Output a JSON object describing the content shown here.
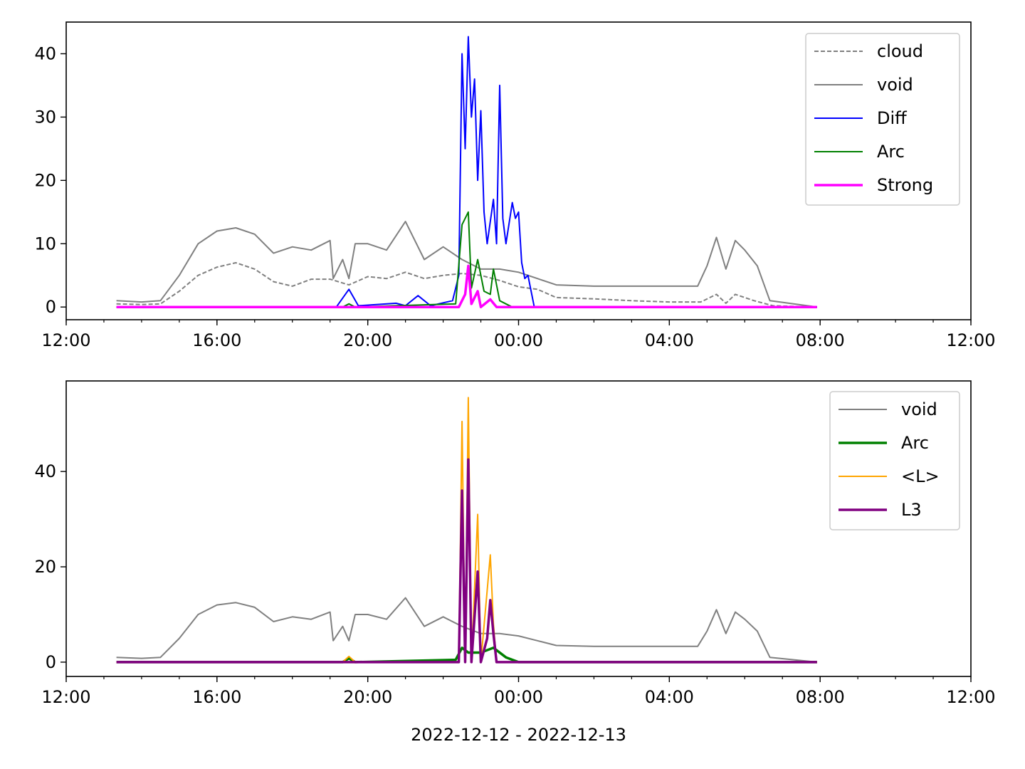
{
  "chart_data": [
    {
      "type": "line",
      "title": "",
      "xlabel": "",
      "ylabel": "",
      "xlim": [
        "2022-12-12 12:00",
        "2022-12-13 12:00"
      ],
      "ylim": [
        -2,
        45
      ],
      "x_ticks": [
        "12:00",
        "16:00",
        "20:00",
        "00:00",
        "04:00",
        "08:00",
        "12:00"
      ],
      "y_ticks": [
        "0",
        "10",
        "20",
        "30",
        "40"
      ],
      "legend_position": "top-right",
      "series": [
        {
          "name": "cloud",
          "color": "#808080",
          "style": "dashed",
          "points": [
            [
              "2022-12-12 13:20",
              0.5
            ],
            [
              "2022-12-12 14:00",
              0.4
            ],
            [
              "2022-12-12 14:30",
              0.5
            ],
            [
              "2022-12-12 15:00",
              2.5
            ],
            [
              "2022-12-12 15:30",
              5.0
            ],
            [
              "2022-12-12 16:00",
              6.3
            ],
            [
              "2022-12-12 16:30",
              7.0
            ],
            [
              "2022-12-12 17:00",
              6.0
            ],
            [
              "2022-12-12 17:30",
              4.0
            ],
            [
              "2022-12-12 18:00",
              3.3
            ],
            [
              "2022-12-12 18:30",
              4.4
            ],
            [
              "2022-12-12 19:00",
              4.4
            ],
            [
              "2022-12-12 19:30",
              3.5
            ],
            [
              "2022-12-12 20:00",
              4.8
            ],
            [
              "2022-12-12 20:30",
              4.5
            ],
            [
              "2022-12-12 21:00",
              5.5
            ],
            [
              "2022-12-12 21:30",
              4.5
            ],
            [
              "2022-12-12 22:00",
              5.0
            ],
            [
              "2022-12-12 22:30",
              5.3
            ],
            [
              "2022-12-12 23:00",
              5.0
            ],
            [
              "2022-12-12 23:30",
              4.2
            ],
            [
              "2022-12-13 00:00",
              3.2
            ],
            [
              "2022-12-13 00:30",
              2.8
            ],
            [
              "2022-12-13 01:00",
              1.5
            ],
            [
              "2022-12-13 02:00",
              1.3
            ],
            [
              "2022-12-13 03:00",
              1.0
            ],
            [
              "2022-12-13 04:00",
              0.8
            ],
            [
              "2022-12-13 04:50",
              0.8
            ],
            [
              "2022-12-13 05:15",
              2.0
            ],
            [
              "2022-12-13 05:30",
              0.6
            ],
            [
              "2022-12-13 05:45",
              2.0
            ],
            [
              "2022-12-13 06:15",
              1.0
            ],
            [
              "2022-12-13 06:45",
              0.2
            ],
            [
              "2022-12-13 07:55",
              0.0
            ]
          ]
        },
        {
          "name": "void",
          "color": "#808080",
          "style": "solid",
          "points": [
            [
              "2022-12-12 13:20",
              1.0
            ],
            [
              "2022-12-12 14:00",
              0.8
            ],
            [
              "2022-12-12 14:30",
              1.0
            ],
            [
              "2022-12-12 15:00",
              5.0
            ],
            [
              "2022-12-12 15:30",
              10.0
            ],
            [
              "2022-12-12 16:00",
              12.0
            ],
            [
              "2022-12-12 16:30",
              12.5
            ],
            [
              "2022-12-12 17:00",
              11.5
            ],
            [
              "2022-12-12 17:30",
              8.5
            ],
            [
              "2022-12-12 18:00",
              9.5
            ],
            [
              "2022-12-12 18:30",
              9.0
            ],
            [
              "2022-12-12 19:00",
              10.5
            ],
            [
              "2022-12-12 19:05",
              4.5
            ],
            [
              "2022-12-12 19:20",
              7.5
            ],
            [
              "2022-12-12 19:30",
              4.5
            ],
            [
              "2022-12-12 19:40",
              10.0
            ],
            [
              "2022-12-12 20:00",
              10.0
            ],
            [
              "2022-12-12 20:30",
              9.0
            ],
            [
              "2022-12-12 21:00",
              13.5
            ],
            [
              "2022-12-12 21:30",
              7.5
            ],
            [
              "2022-12-12 22:00",
              9.5
            ],
            [
              "2022-12-12 22:30",
              7.5
            ],
            [
              "2022-12-12 23:00",
              6.0
            ],
            [
              "2022-12-12 23:30",
              6.0
            ],
            [
              "2022-12-13 00:00",
              5.5
            ],
            [
              "2022-12-13 00:30",
              4.5
            ],
            [
              "2022-12-13 01:00",
              3.5
            ],
            [
              "2022-12-13 02:00",
              3.3
            ],
            [
              "2022-12-13 03:00",
              3.3
            ],
            [
              "2022-12-13 04:00",
              3.3
            ],
            [
              "2022-12-13 04:45",
              3.3
            ],
            [
              "2022-12-13 05:00",
              6.5
            ],
            [
              "2022-12-13 05:15",
              11.0
            ],
            [
              "2022-12-13 05:30",
              6.0
            ],
            [
              "2022-12-13 05:45",
              10.5
            ],
            [
              "2022-12-13 06:00",
              9.0
            ],
            [
              "2022-12-13 06:20",
              6.5
            ],
            [
              "2022-12-13 06:40",
              1.0
            ],
            [
              "2022-12-13 07:55",
              0.0
            ]
          ]
        },
        {
          "name": "Diff",
          "color": "#0000ff",
          "style": "solid",
          "points": [
            [
              "2022-12-12 13:20",
              0.0
            ],
            [
              "2022-12-12 19:10",
              0.0
            ],
            [
              "2022-12-12 19:30",
              2.8
            ],
            [
              "2022-12-12 19:45",
              0.2
            ],
            [
              "2022-12-12 20:45",
              0.6
            ],
            [
              "2022-12-12 21:00",
              0.2
            ],
            [
              "2022-12-12 21:20",
              1.8
            ],
            [
              "2022-12-12 21:40",
              0.2
            ],
            [
              "2022-12-12 22:15",
              1.0
            ],
            [
              "2022-12-12 22:25",
              5.0
            ],
            [
              "2022-12-12 22:30",
              40.0
            ],
            [
              "2022-12-12 22:35",
              25.0
            ],
            [
              "2022-12-12 22:40",
              42.7
            ],
            [
              "2022-12-12 22:45",
              30.0
            ],
            [
              "2022-12-12 22:50",
              36.0
            ],
            [
              "2022-12-12 22:55",
              20.0
            ],
            [
              "2022-12-12 23:00",
              31.0
            ],
            [
              "2022-12-12 23:05",
              15.0
            ],
            [
              "2022-12-12 23:10",
              10.0
            ],
            [
              "2022-12-12 23:20",
              17.0
            ],
            [
              "2022-12-12 23:25",
              10.0
            ],
            [
              "2022-12-12 23:30",
              35.0
            ],
            [
              "2022-12-12 23:35",
              14.0
            ],
            [
              "2022-12-12 23:40",
              10.0
            ],
            [
              "2022-12-12 23:50",
              16.5
            ],
            [
              "2022-12-12 23:55",
              14.0
            ],
            [
              "2022-12-13 00:00",
              15.0
            ],
            [
              "2022-12-13 00:05",
              7.0
            ],
            [
              "2022-12-13 00:10",
              4.5
            ],
            [
              "2022-12-13 00:15",
              5.0
            ],
            [
              "2022-12-13 00:25",
              0.0
            ],
            [
              "2022-12-13 07:55",
              0.0
            ]
          ]
        },
        {
          "name": "Arc",
          "color": "#008000",
          "style": "solid",
          "points": [
            [
              "2022-12-12 13:20",
              0.0
            ],
            [
              "2022-12-12 19:20",
              0.0
            ],
            [
              "2022-12-12 19:30",
              0.5
            ],
            [
              "2022-12-12 19:40",
              0.0
            ],
            [
              "2022-12-12 22:20",
              0.5
            ],
            [
              "2022-12-12 22:30",
              13.0
            ],
            [
              "2022-12-12 22:40",
              15.0
            ],
            [
              "2022-12-12 22:45",
              3.0
            ],
            [
              "2022-12-12 22:55",
              7.5
            ],
            [
              "2022-12-12 23:05",
              2.5
            ],
            [
              "2022-12-12 23:15",
              2.0
            ],
            [
              "2022-12-12 23:20",
              6.0
            ],
            [
              "2022-12-12 23:30",
              1.0
            ],
            [
              "2022-12-12 23:40",
              0.5
            ],
            [
              "2022-12-12 23:50",
              0.0
            ],
            [
              "2022-12-13 07:55",
              0.0
            ]
          ]
        },
        {
          "name": "Strong",
          "color": "#ff00ff",
          "style": "solid-thick",
          "points": [
            [
              "2022-12-12 13:20",
              0.0
            ],
            [
              "2022-12-12 22:25",
              0.0
            ],
            [
              "2022-12-12 22:35",
              2.0
            ],
            [
              "2022-12-12 22:40",
              6.5
            ],
            [
              "2022-12-12 22:45",
              0.5
            ],
            [
              "2022-12-12 22:55",
              2.5
            ],
            [
              "2022-12-12 23:00",
              0.0
            ],
            [
              "2022-12-12 23:15",
              1.2
            ],
            [
              "2022-12-12 23:25",
              0.0
            ],
            [
              "2022-12-13 07:55",
              0.0
            ]
          ]
        }
      ]
    },
    {
      "type": "line",
      "title": "",
      "xlabel": "2022-12-12 - 2022-12-13",
      "ylabel": "",
      "xlim": [
        "2022-12-12 12:00",
        "2022-12-13 12:00"
      ],
      "ylim": [
        -3,
        59
      ],
      "x_ticks": [
        "12:00",
        "16:00",
        "20:00",
        "00:00",
        "04:00",
        "08:00",
        "12:00"
      ],
      "y_ticks": [
        "0",
        "20",
        "40"
      ],
      "legend_position": "top-right",
      "series": [
        {
          "name": "void",
          "color": "#808080",
          "style": "solid",
          "points": [
            [
              "2022-12-12 13:20",
              1.0
            ],
            [
              "2022-12-12 14:00",
              0.8
            ],
            [
              "2022-12-12 14:30",
              1.0
            ],
            [
              "2022-12-12 15:00",
              5.0
            ],
            [
              "2022-12-12 15:30",
              10.0
            ],
            [
              "2022-12-12 16:00",
              12.0
            ],
            [
              "2022-12-12 16:30",
              12.5
            ],
            [
              "2022-12-12 17:00",
              11.5
            ],
            [
              "2022-12-12 17:30",
              8.5
            ],
            [
              "2022-12-12 18:00",
              9.5
            ],
            [
              "2022-12-12 18:30",
              9.0
            ],
            [
              "2022-12-12 19:00",
              10.5
            ],
            [
              "2022-12-12 19:05",
              4.5
            ],
            [
              "2022-12-12 19:20",
              7.5
            ],
            [
              "2022-12-12 19:30",
              4.5
            ],
            [
              "2022-12-12 19:40",
              10.0
            ],
            [
              "2022-12-12 20:00",
              10.0
            ],
            [
              "2022-12-12 20:30",
              9.0
            ],
            [
              "2022-12-12 21:00",
              13.5
            ],
            [
              "2022-12-12 21:30",
              7.5
            ],
            [
              "2022-12-12 22:00",
              9.5
            ],
            [
              "2022-12-12 22:30",
              7.5
            ],
            [
              "2022-12-12 23:00",
              6.0
            ],
            [
              "2022-12-12 23:30",
              6.0
            ],
            [
              "2022-12-13 00:00",
              5.5
            ],
            [
              "2022-12-13 00:30",
              4.5
            ],
            [
              "2022-12-13 01:00",
              3.5
            ],
            [
              "2022-12-13 02:00",
              3.3
            ],
            [
              "2022-12-13 03:00",
              3.3
            ],
            [
              "2022-12-13 04:00",
              3.3
            ],
            [
              "2022-12-13 04:45",
              3.3
            ],
            [
              "2022-12-13 05:00",
              6.5
            ],
            [
              "2022-12-13 05:15",
              11.0
            ],
            [
              "2022-12-13 05:30",
              6.0
            ],
            [
              "2022-12-13 05:45",
              10.5
            ],
            [
              "2022-12-13 06:00",
              9.0
            ],
            [
              "2022-12-13 06:20",
              6.5
            ],
            [
              "2022-12-13 06:40",
              1.0
            ],
            [
              "2022-12-13 07:55",
              0.0
            ]
          ]
        },
        {
          "name": "Arc",
          "color": "#008000",
          "style": "solid-thick",
          "points": [
            [
              "2022-12-12 13:20",
              0.0
            ],
            [
              "2022-12-12 19:20",
              0.0
            ],
            [
              "2022-12-12 19:30",
              0.8
            ],
            [
              "2022-12-12 19:40",
              0.0
            ],
            [
              "2022-12-12 22:20",
              0.5
            ],
            [
              "2022-12-12 22:30",
              3.0
            ],
            [
              "2022-12-12 22:40",
              2.0
            ],
            [
              "2022-12-12 23:00",
              2.0
            ],
            [
              "2022-12-12 23:20",
              3.0
            ],
            [
              "2022-12-12 23:40",
              1.0
            ],
            [
              "2022-12-13 00:00",
              0.0
            ],
            [
              "2022-12-13 07:55",
              0.0
            ]
          ]
        },
        {
          "name": "<L>",
          "color": "#ffa500",
          "style": "solid",
          "points": [
            [
              "2022-12-12 13:20",
              0.0
            ],
            [
              "2022-12-12 19:20",
              0.0
            ],
            [
              "2022-12-12 19:30",
              1.2
            ],
            [
              "2022-12-12 19:40",
              0.0
            ],
            [
              "2022-12-12 22:25",
              0.0
            ],
            [
              "2022-12-12 22:30",
              50.5
            ],
            [
              "2022-12-12 22:35",
              0.0
            ],
            [
              "2022-12-12 22:40",
              55.5
            ],
            [
              "2022-12-12 22:45",
              0.0
            ],
            [
              "2022-12-12 22:55",
              31.0
            ],
            [
              "2022-12-12 23:00",
              0.0
            ],
            [
              "2022-12-12 23:10",
              15.0
            ],
            [
              "2022-12-12 23:15",
              22.5
            ],
            [
              "2022-12-12 23:20",
              8.0
            ],
            [
              "2022-12-12 23:25",
              0.0
            ],
            [
              "2022-12-13 07:55",
              0.0
            ]
          ]
        },
        {
          "name": "L3",
          "color": "#800080",
          "style": "solid-thick",
          "points": [
            [
              "2022-12-12 13:20",
              0.0
            ],
            [
              "2022-12-12 22:25",
              0.0
            ],
            [
              "2022-12-12 22:30",
              36.0
            ],
            [
              "2022-12-12 22:35",
              0.0
            ],
            [
              "2022-12-12 22:40",
              42.5
            ],
            [
              "2022-12-12 22:45",
              0.0
            ],
            [
              "2022-12-12 22:55",
              19.0
            ],
            [
              "2022-12-12 23:00",
              0.0
            ],
            [
              "2022-12-12 23:10",
              5.0
            ],
            [
              "2022-12-12 23:15",
              13.0
            ],
            [
              "2022-12-12 23:20",
              6.0
            ],
            [
              "2022-12-12 23:25",
              0.0
            ],
            [
              "2022-12-13 07:55",
              0.0
            ]
          ]
        }
      ]
    }
  ]
}
